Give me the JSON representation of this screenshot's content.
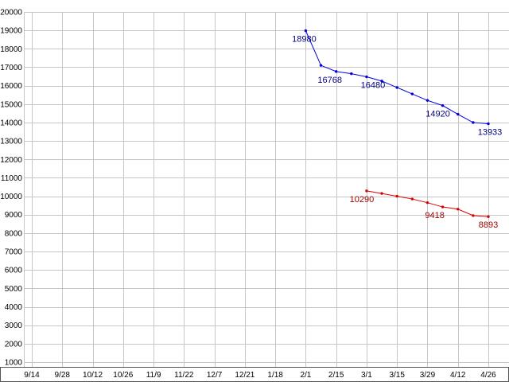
{
  "chart_data": {
    "type": "line",
    "title": "",
    "xlabel": "",
    "ylabel": "",
    "ylim": [
      1000,
      20000
    ],
    "y_tick_step": 1000,
    "grid": true,
    "legend": "none",
    "y_tick_labels": [
      "1000",
      "2000",
      "3000",
      "4000",
      "5000",
      "6000",
      "7000",
      "8000",
      "9000",
      "10000",
      "11000",
      "12000",
      "13000",
      "14000",
      "15000",
      "16000",
      "17000",
      "18000",
      "19000",
      "20000"
    ],
    "x_tick_labels": [
      "9/14",
      "9/28",
      "10/12",
      "10/26",
      "11/9",
      "11/22",
      "12/7",
      "12/21",
      "1/18",
      "2/1",
      "2/15",
      "3/1",
      "3/15",
      "3/29",
      "4/12",
      "4/26"
    ],
    "series": [
      {
        "name": "upper-blue-series",
        "color": "#0000dd",
        "label_color": "#000080",
        "marker": "dot",
        "points": [
          {
            "t": 9.0,
            "v": 18980,
            "label": "18980",
            "label_dx": -2
          },
          {
            "t": 9.5,
            "v": 17100
          },
          {
            "t": 10.0,
            "v": 16768,
            "label": "16768",
            "label_dx": -8
          },
          {
            "t": 10.5,
            "v": 16650
          },
          {
            "t": 11.0,
            "v": 16480,
            "label": "16480",
            "label_dx": 8
          },
          {
            "t": 11.5,
            "v": 16250
          },
          {
            "t": 12.0,
            "v": 15900
          },
          {
            "t": 12.5,
            "v": 15550
          },
          {
            "t": 13.0,
            "v": 15200
          },
          {
            "t": 13.5,
            "v": 14920,
            "label": "14920",
            "label_dx": -6
          },
          {
            "t": 14.0,
            "v": 14450
          },
          {
            "t": 14.5,
            "v": 14000
          },
          {
            "t": 15.0,
            "v": 13933,
            "label": "13933",
            "label_dx": 2
          }
        ]
      },
      {
        "name": "lower-red-series",
        "color": "#dd0000",
        "label_color": "#990000",
        "marker": "dot",
        "points": [
          {
            "t": 11.0,
            "v": 10290,
            "label": "10290",
            "label_dx": -6
          },
          {
            "t": 11.5,
            "v": 10150
          },
          {
            "t": 12.0,
            "v": 10000
          },
          {
            "t": 12.5,
            "v": 9850
          },
          {
            "t": 13.0,
            "v": 9650
          },
          {
            "t": 13.5,
            "v": 9418,
            "label": "9418",
            "label_dx": -10
          },
          {
            "t": 14.0,
            "v": 9300
          },
          {
            "t": 14.5,
            "v": 8950
          },
          {
            "t": 15.0,
            "v": 8893,
            "label": "8893",
            "label_dx": 0
          }
        ]
      }
    ]
  },
  "colors": {
    "background": "#ffffff",
    "grid": "#c6c6c6",
    "axis_text": "#000000",
    "frame": "#555555"
  }
}
